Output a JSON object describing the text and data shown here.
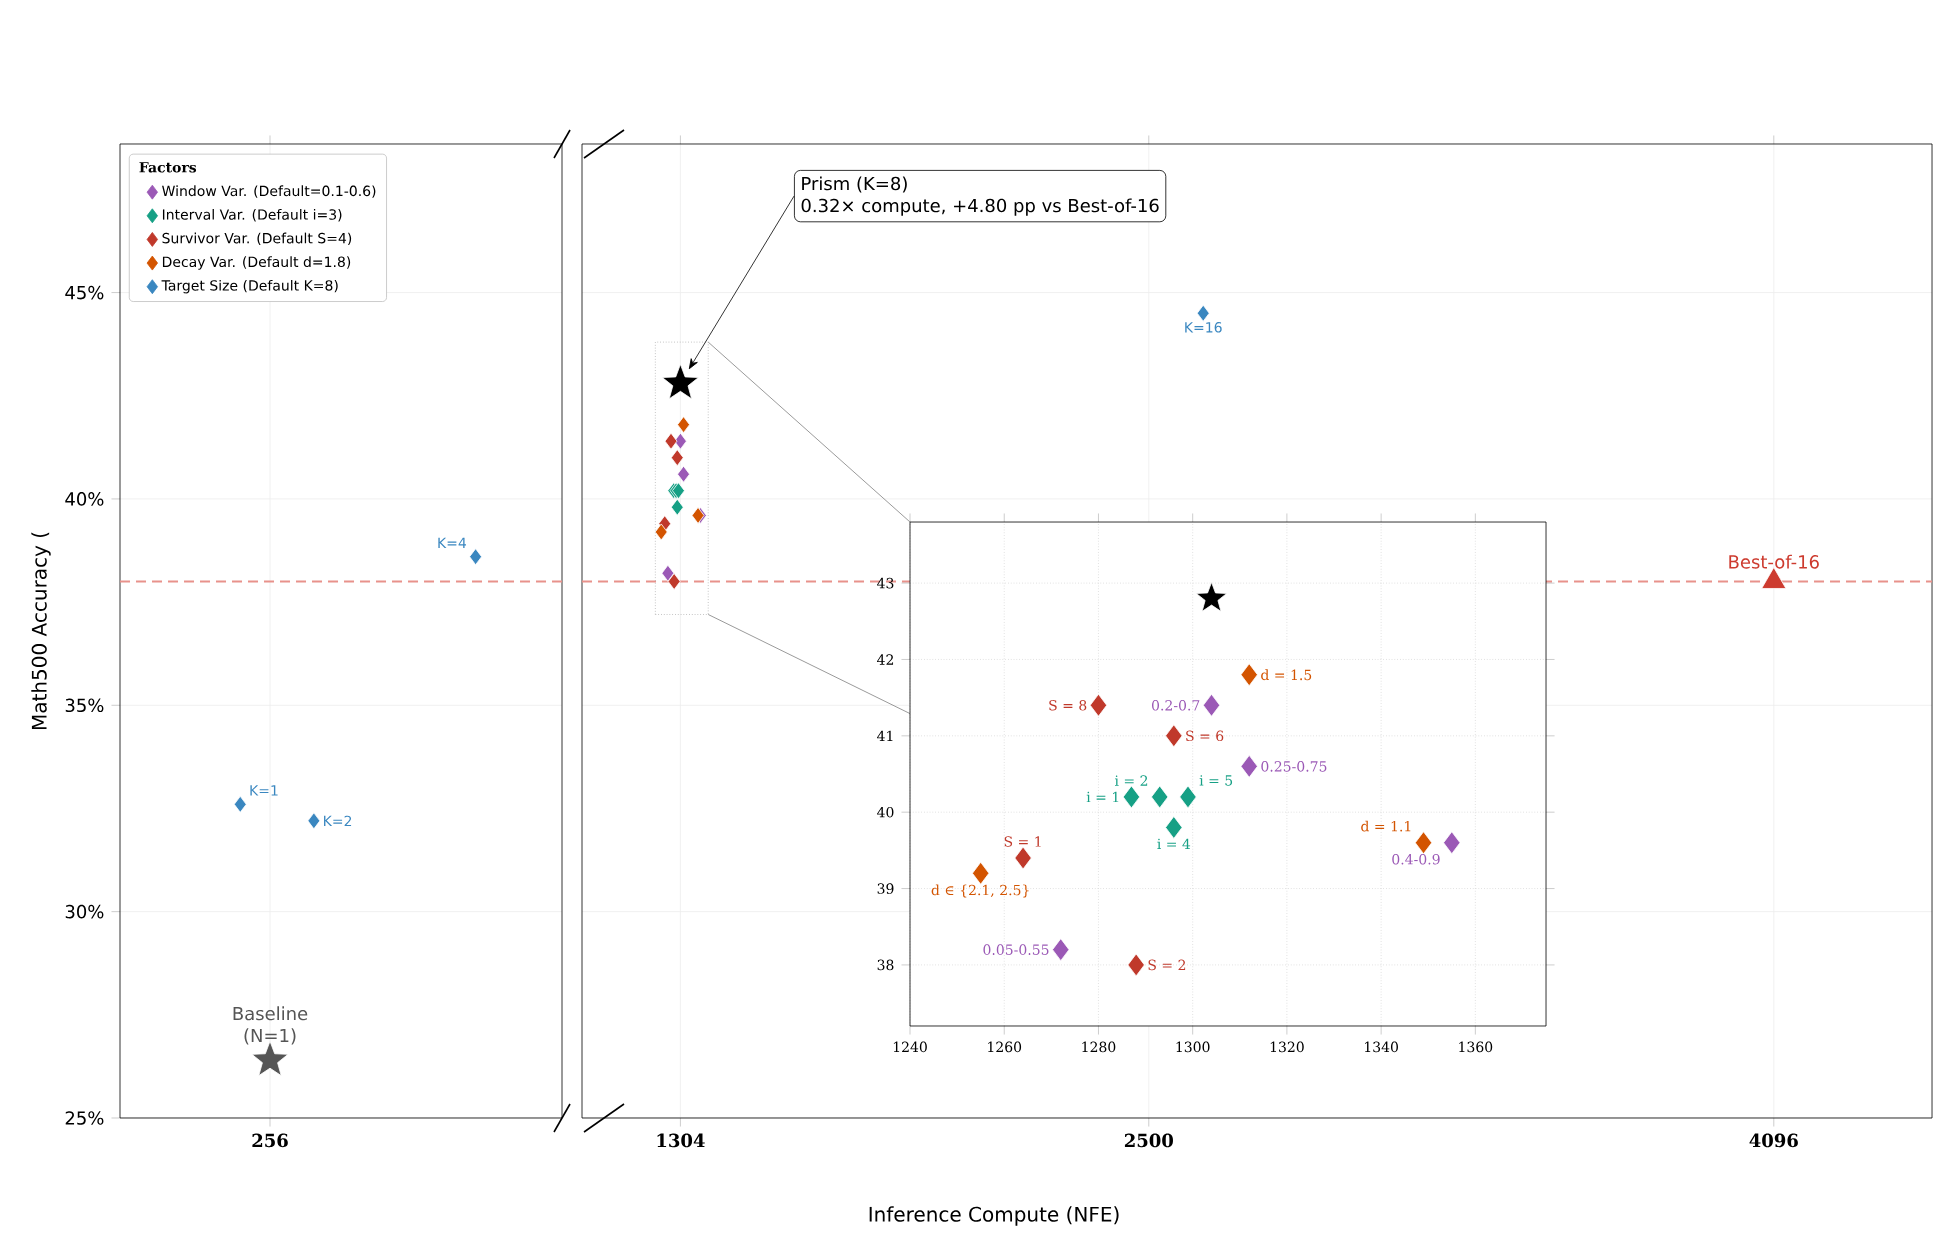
{
  "chart_data": [
    {
      "type": "scatter",
      "xlabel": "Inference Compute (NFE)",
      "ylabel": "Math500 Accuracy (",
      "xlim": [
        -127,
        4500
      ],
      "xticks": [
        256,
        1304,
        2500,
        4096
      ],
      "ylim": [
        25,
        48.6
      ],
      "yticks": [
        {
          "value": 25,
          "label": "25%"
        },
        {
          "value": 30,
          "label": "30%"
        },
        {
          "value": 35,
          "label": "35%"
        },
        {
          "value": 40,
          "label": "40%"
        },
        {
          "value": 45,
          "label": "45%"
        }
      ],
      "grid": true,
      "legend": "top left",
      "legend_title": "Factors",
      "marker": "diamond",
      "series": [
        {
          "name": "Window Var. (Default=0.1-0.6)",
          "color": "#9b59b6",
          "x": [
            1272,
            1304,
            1312,
            1355
          ],
          "values": [
            38.2,
            41.4,
            40.6,
            39.6
          ]
        },
        {
          "name": "Interval Var. (Default i=3)",
          "color": "#16a085",
          "x": [
            1287,
            1293,
            1296,
            1299
          ],
          "values": [
            40.2,
            40.2,
            39.8,
            40.2
          ]
        },
        {
          "name": "Survivor Var. (Default S=4)",
          "color": "#c0392b",
          "x": [
            1264,
            1288,
            1296,
            1280
          ],
          "values": [
            39.4,
            38.0,
            41.0,
            41.4
          ]
        },
        {
          "name": "Decay Var. (Default d=1.8)",
          "color": "#d35400",
          "x": [
            1255,
            1312,
            1349
          ],
          "values": [
            39.2,
            41.8,
            39.6
          ]
        },
        {
          "name": "Target Size (Default K=8)",
          "color": "#3a87c0",
          "x": [
            180,
            368,
            781,
            2639
          ],
          "values": [
            32.6,
            32.2,
            38.6,
            44.5
          ]
        },
        {
          "name": "Baseline (N=1)",
          "color": "#555555",
          "marker": "star",
          "x": [
            256
          ],
          "values": [
            26.4
          ]
        },
        {
          "name": "Prism (K=8)",
          "color": "#000000",
          "marker": "star",
          "x": [
            1304
          ],
          "values": [
            42.8
          ]
        },
        {
          "name": "Best-of-16",
          "color": "#cd3b2f",
          "marker": "triangle",
          "x": [
            4096
          ],
          "values": [
            38.0
          ]
        }
      ],
      "annotations": [
        {
          "text": "K=1",
          "x": 180,
          "y": 32.6
        },
        {
          "text": "K=2",
          "x": 368,
          "y": 32.2
        },
        {
          "text": "K=4",
          "x": 781,
          "y": 38.6
        },
        {
          "text": "K=16",
          "x": 2639,
          "y": 44.5
        },
        "0.32× compute, +4.80 pp vs Best-of-16"
      ],
      "ref_lines": [
        {
          "axis": "y",
          "value": 38,
          "color": "#e8928b",
          "line_style": "dashed"
        }
      ]
    },
    {
      "type": "scatter",
      "xlim": [
        1240,
        1375
      ],
      "xticks": [
        1240,
        1260,
        1280,
        1300,
        1320,
        1340,
        1360
      ],
      "ylim": [
        37.2,
        43.8
      ],
      "yticks": [
        38,
        39,
        40,
        41,
        42,
        43
      ],
      "grid": true,
      "marker": "diamond",
      "series": [
        {
          "color": "#9b59b6",
          "x": [
            1272,
            1304,
            1312,
            1355
          ],
          "values": [
            38.2,
            41.4,
            40.6,
            39.6
          ]
        },
        {
          "color": "#16a085",
          "x": [
            1287,
            1293,
            1296,
            1299
          ],
          "values": [
            40.2,
            40.2,
            39.8,
            40.2
          ]
        },
        {
          "color": "#c0392b",
          "x": [
            1264,
            1288,
            1296,
            1280
          ],
          "values": [
            39.4,
            38.0,
            41.0,
            41.4
          ]
        },
        {
          "color": "#d35400",
          "x": [
            1255,
            1312,
            1349
          ],
          "values": [
            39.2,
            41.8,
            39.6
          ]
        },
        {
          "color": "#000000",
          "marker": "star",
          "x": [
            1304
          ],
          "values": [
            42.8
          ]
        }
      ],
      "annotations": [
        {
          "text": "0.05-0.55",
          "x": 1272,
          "y": 38.2
        },
        {
          "text": "0.2-0.7",
          "x": 1304,
          "y": 41.4
        },
        {
          "text": "0.25-0.75",
          "x": 1312,
          "y": 40.6
        },
        {
          "text": "0.4-0.9",
          "x": 1355,
          "y": 39.6
        },
        {
          "text": "i = 1",
          "x": 1287,
          "y": 40.2
        },
        {
          "text": "i = 2",
          "x": 1293,
          "y": 40.2
        },
        {
          "text": "i = 4",
          "x": 1296,
          "y": 39.8
        },
        {
          "text": "i = 5",
          "x": 1299,
          "y": 40.2
        },
        {
          "text": "S = 1",
          "x": 1264,
          "y": 39.4
        },
        {
          "text": "S = 2",
          "x": 1288,
          "y": 38.0
        },
        {
          "text": "S = 6",
          "x": 1296,
          "y": 41.0
        },
        {
          "text": "S = 8",
          "x": 1280,
          "y": 41.4
        },
        {
          "text": "d ∈ {2.1, 2.5}",
          "x": 1255,
          "y": 39.2
        },
        {
          "text": "d = 1.5",
          "x": 1312,
          "y": 41.8
        },
        {
          "text": "d = 1.1",
          "x": 1349,
          "y": 39.6
        }
      ]
    }
  ]
}
